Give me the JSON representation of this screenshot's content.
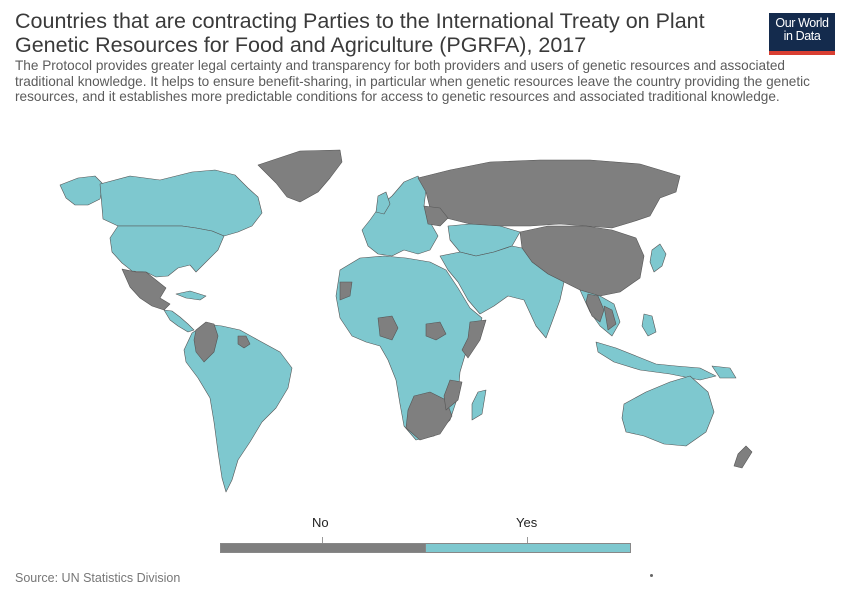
{
  "header": {
    "title": "Countries that are contracting Parties to the International Treaty on Plant Genetic Resources for Food and Agriculture (PGRFA), 2017",
    "subtitle": "The Protocol provides greater legal certainty and transparency for both providers and users of genetic resources and associated traditional knowledge. It helps to ensure benefit-sharing, in particular when genetic resources leave the country providing the genetic resources, and it establishes more predictable conditions for access to genetic resources and associated traditional knowledge."
  },
  "logo": {
    "line1": "Our World",
    "line2": "in Data"
  },
  "legend": {
    "items": [
      {
        "label": "No",
        "color": "#7f7f7f"
      },
      {
        "label": "Yes",
        "color": "#7ec8cf"
      }
    ]
  },
  "colors": {
    "yes": "#7ec8cf",
    "no": "#7f7f7f",
    "border": "#555555"
  },
  "footer": {
    "source": "Source: UN Statistics Division"
  }
}
